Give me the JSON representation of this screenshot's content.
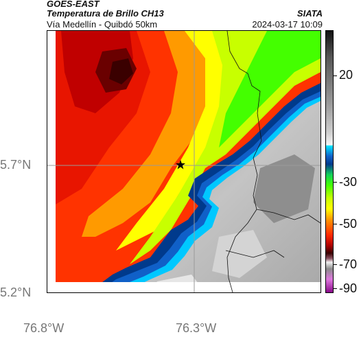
{
  "header": {
    "satellite": "GOES-EAST",
    "product": "Temperatura de Brillo CH13",
    "source": "SIATA",
    "region": "Vía Medellín - Quibdó 50km",
    "datetime": "2024-03-17 10:09"
  },
  "map": {
    "lat_labels": [
      "5.7°N",
      "5.2°N"
    ],
    "lon_labels": [
      "76.8°W",
      "76.3°W"
    ],
    "marker_icon": "star-icon"
  },
  "colorbar": {
    "ticks": [
      "20",
      "-30",
      "-50",
      "-70",
      "-90"
    ]
  },
  "colors": {
    "grid": "#9a9a9a",
    "axis_label": "#777777",
    "cloud_top_coldest": "#5a0000",
    "cloud_top_cold": "#ff2a00",
    "land_warm": "#b8b8b8"
  }
}
